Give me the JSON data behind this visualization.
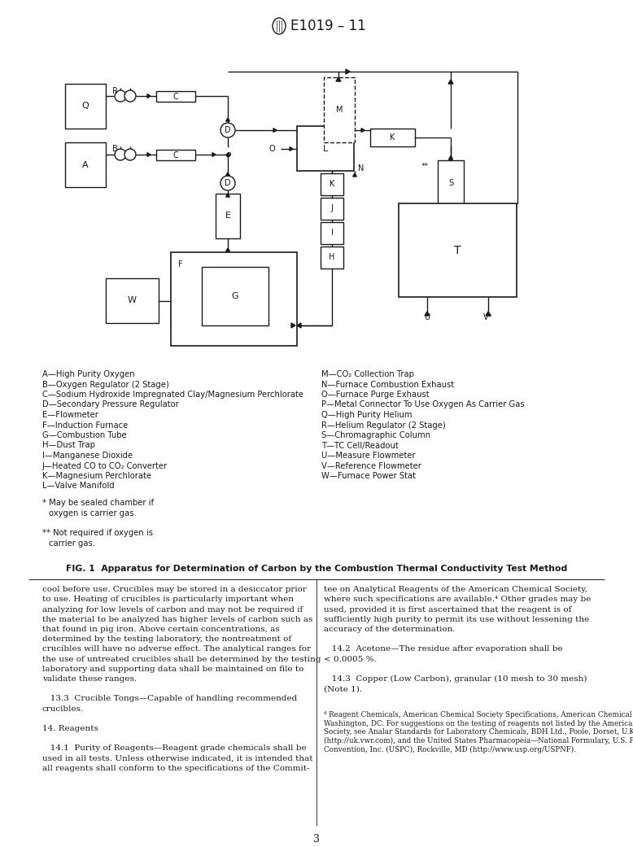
{
  "title": "E1019 – 11",
  "fig_caption": "FIG. 1  Apparatus for Determination of Carbon by the Combustion Thermal Conductivity Test Method",
  "legend_left": [
    "A—High Purity Oxygen",
    "B—Oxygen Regulator (2 Stage)",
    "C—Sodium Hydroxide Impregnated Clay/Magnesium Perchlorate",
    "D—Secondary Pressure Regulator",
    "E—Flowmeter",
    "F—Induction Furnace",
    "G—Combustion Tube",
    "H—Dust Trap",
    "I—Manganese Dioxide",
    "J—Heated CO to CO₂ Converter",
    "K—Magnesium Perchlorate",
    "L—Valve Manifold"
  ],
  "legend_right": [
    "M—CO₂ Collection Trap",
    "N—Furnace Combustion Exhaust",
    "O—Furnace Purge Exhaust",
    "P—Metal Connector To Use Oxygen As Carrier Gas",
    "Q—High Purity Helium",
    "R—Helium Regulator (2 Stage)",
    "S—Chromagraphic Column",
    "T—TC Cell/Readout",
    "U—Measure Flowmeter",
    "V—Reference Flowmeter",
    "W—Furnace Power Stat"
  ],
  "footnote1": "* May be sealed chamber if\n  oxygen is carrier gas.",
  "footnote2": "** Not required if oxygen is\n   carrier gas.",
  "page_number": "3"
}
